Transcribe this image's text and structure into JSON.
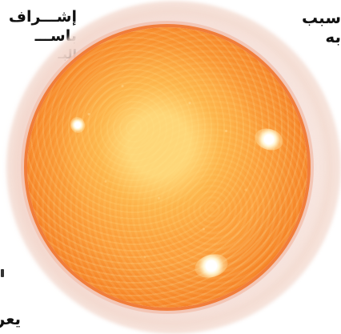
{
  "article": {
    "left_column": {
      "lines": [
        "إشـــراف",
        "باســـ",
        "البـ",
        "ن"
      ]
    },
    "right_column": {
      "lines": [
        "سبب",
        "به"
      ]
    },
    "bottom_left": "يعر"
  },
  "illustration": {
    "title": "",
    "colors": {
      "core": "#f9a444",
      "mid": "#f4872b",
      "edge": "#e1541b",
      "halo": "#f2c2b0",
      "flare": "#ffffff"
    }
  }
}
